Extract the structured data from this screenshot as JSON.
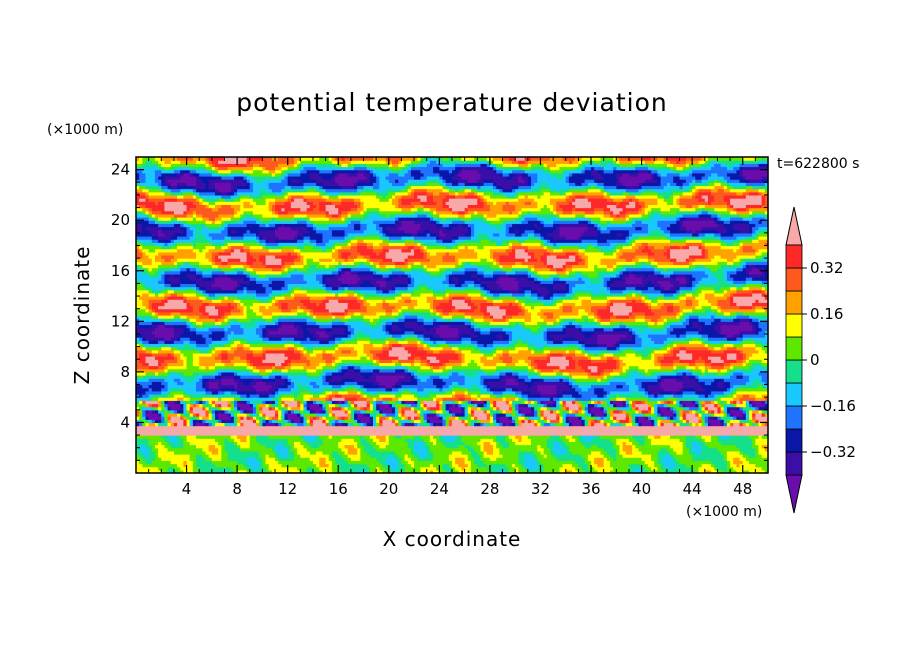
{
  "chart_data": {
    "type": "heatmap",
    "title": "potential temperature deviation",
    "xlabel": "X coordinate",
    "ylabel": "Z coordinate",
    "x_unit": "(×1000 m)",
    "z_unit": "(×1000 m)",
    "time_label": "t=622800 s",
    "xlim": [
      0,
      50
    ],
    "ylim": [
      0,
      25
    ],
    "x_ticks": [
      4,
      8,
      12,
      16,
      20,
      24,
      28,
      32,
      36,
      40,
      44,
      48
    ],
    "y_ticks": [
      4,
      8,
      12,
      16,
      20,
      24
    ],
    "x_tick_labels": [
      "4",
      "8",
      "12",
      "16",
      "20",
      "24",
      "28",
      "32",
      "36",
      "40",
      "44",
      "48"
    ],
    "y_tick_labels": [
      "4",
      "8",
      "12",
      "16",
      "20",
      "24"
    ],
    "colorbar": {
      "levels": [
        -0.4,
        -0.32,
        -0.24,
        -0.16,
        -0.08,
        0,
        0.08,
        0.16,
        0.24,
        0.32,
        0.4
      ],
      "labeled_levels": [
        -0.32,
        -0.16,
        0,
        0.16,
        0.32
      ],
      "labels": [
        "−0.32",
        "−0.16",
        "0",
        "0.16",
        "0.32"
      ],
      "colors": [
        "#6a0dad",
        "#3b0ea8",
        "#0a17a8",
        "#1e74ff",
        "#18c8ff",
        "#14e08c",
        "#5ee800",
        "#ffff00",
        "#ffa200",
        "#ff5a1e",
        "#ff2828",
        "#f7a8a8"
      ],
      "extend": "both"
    }
  }
}
